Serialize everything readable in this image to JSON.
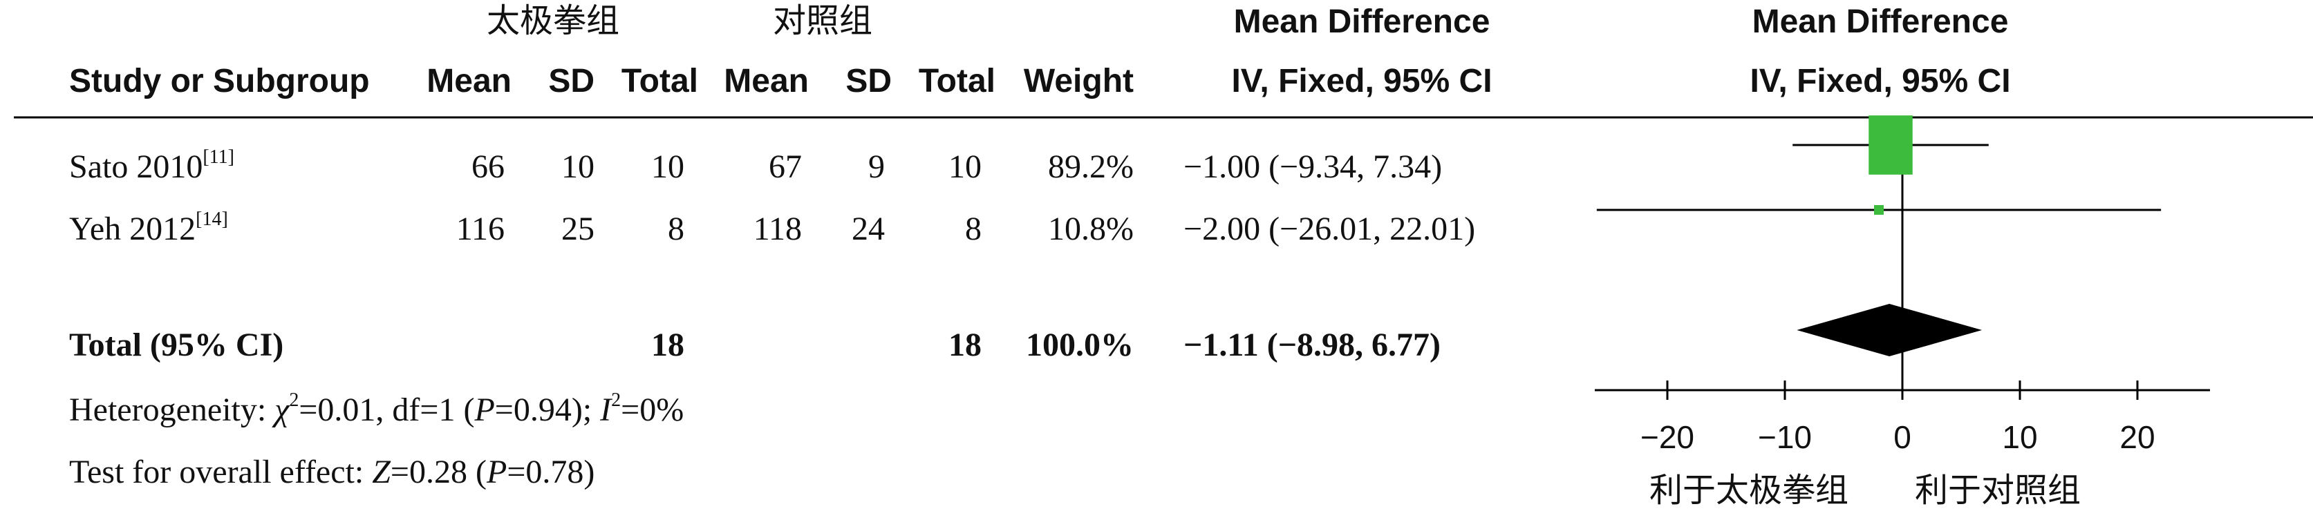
{
  "headers": {
    "group_exp": "太极拳组",
    "group_ctrl": "对照组",
    "study": "Study or Subgroup",
    "mean": "Mean",
    "sd": "SD",
    "total": "Total",
    "weight": "Weight",
    "md_title": "Mean Difference",
    "md_method": "IV, Fixed, 95% CI",
    "plot_title": "Mean Difference",
    "plot_method": "IV, Fixed, 95% CI"
  },
  "rows": [
    {
      "name": "Sato 2010",
      "ref": "[11]",
      "m1": "66",
      "sd1": "10",
      "n1": "10",
      "m2": "67",
      "sd2": "9",
      "n2": "10",
      "weight": "89.2%",
      "ci": "−1.00 (−9.34, 7.34)"
    },
    {
      "name": "Yeh 2012",
      "ref": "[14]",
      "m1": "116",
      "sd1": "25",
      "n1": "8",
      "m2": "118",
      "sd2": "24",
      "n2": "8",
      "weight": "10.8%",
      "ci": "−2.00 (−26.01, 22.01)"
    }
  ],
  "total_row": {
    "label": "Total (95% CI)",
    "n1": "18",
    "n2": "18",
    "weight": "100.0%",
    "ci": "−1.11 (−8.98, 6.77)"
  },
  "footer": {
    "het_prefix": "Heterogeneity: ",
    "chi": "χ",
    "het_mid": "=0.01, df=1 (",
    "p": "P",
    "het_p": "=0.94); ",
    "i": "I",
    "het_end": "=0%",
    "sq": "2",
    "test_prefix": "Test for overall effect: ",
    "z": "Z",
    "test_mid": "=0.28 (",
    "test_end": "=0.78)"
  },
  "axis": {
    "favours_left": "利于太极拳组",
    "favours_right": "利于对照组"
  },
  "colors": {
    "square": "#3dbb3d",
    "diamond": "#000000",
    "line": "#000000"
  },
  "chart_data": {
    "type": "forest",
    "xlim": [
      -25,
      25
    ],
    "ticks": [
      -20,
      -10,
      0,
      10,
      20
    ],
    "tick_labels": [
      "−20",
      "−10",
      "0",
      "10",
      "20"
    ],
    "studies": [
      {
        "name": "Sato 2010",
        "estimate": -1.0,
        "lower": -9.34,
        "upper": 7.34,
        "weight": 89.2
      },
      {
        "name": "Yeh 2012",
        "estimate": -2.0,
        "lower": -26.01,
        "upper": 22.01,
        "weight": 10.8
      }
    ],
    "pooled": {
      "estimate": -1.11,
      "lower": -8.98,
      "upper": 6.77
    }
  }
}
